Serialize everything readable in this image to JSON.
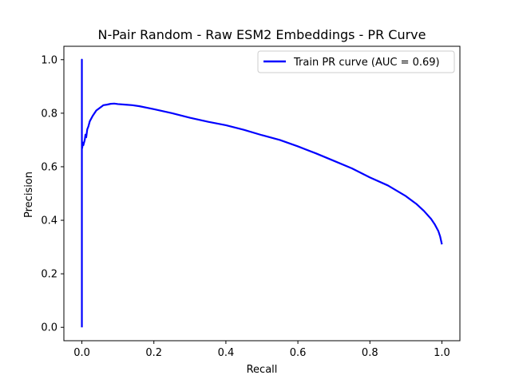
{
  "chart_data": {
    "type": "line",
    "title": "N-Pair Random - Raw ESM2 Embeddings - PR Curve",
    "xlabel": "Recall",
    "ylabel": "Precision",
    "xlim": [
      -0.05,
      1.05
    ],
    "ylim": [
      -0.05,
      1.05
    ],
    "grid": false,
    "legend_position": "top-right",
    "x_ticks": [
      0.0,
      0.2,
      0.4,
      0.6,
      0.8,
      1.0
    ],
    "x_tick_labels": [
      "0.0",
      "0.2",
      "0.4",
      "0.6",
      "0.8",
      "1.0"
    ],
    "y_ticks": [
      0.0,
      0.2,
      0.4,
      0.6,
      0.8,
      1.0
    ],
    "y_tick_labels": [
      "0.0",
      "0.2",
      "0.4",
      "0.6",
      "0.8",
      "1.0"
    ],
    "series": [
      {
        "name": "Train PR curve (AUC = 0.69)",
        "color": "#0000ff",
        "x": [
          0.0,
          0.0,
          0.0,
          0.0,
          0.0,
          0.001,
          0.002,
          0.004,
          0.006,
          0.008,
          0.01,
          0.012,
          0.015,
          0.018,
          0.022,
          0.03,
          0.04,
          0.05,
          0.06,
          0.07,
          0.08,
          0.09,
          0.1,
          0.12,
          0.14,
          0.16,
          0.2,
          0.25,
          0.3,
          0.35,
          0.4,
          0.45,
          0.5,
          0.55,
          0.6,
          0.65,
          0.7,
          0.75,
          0.8,
          0.85,
          0.9,
          0.93,
          0.95,
          0.97,
          0.98,
          0.99,
          0.995,
          1.0
        ],
        "y": [
          0.0,
          1.0,
          0.6,
          0.65,
          0.7,
          0.67,
          0.69,
          0.68,
          0.69,
          0.7,
          0.72,
          0.71,
          0.74,
          0.75,
          0.77,
          0.79,
          0.81,
          0.82,
          0.83,
          0.832,
          0.835,
          0.836,
          0.834,
          0.832,
          0.83,
          0.826,
          0.815,
          0.8,
          0.783,
          0.768,
          0.755,
          0.738,
          0.718,
          0.7,
          0.676,
          0.65,
          0.622,
          0.594,
          0.56,
          0.53,
          0.49,
          0.46,
          0.435,
          0.405,
          0.385,
          0.36,
          0.34,
          0.31
        ]
      }
    ]
  }
}
